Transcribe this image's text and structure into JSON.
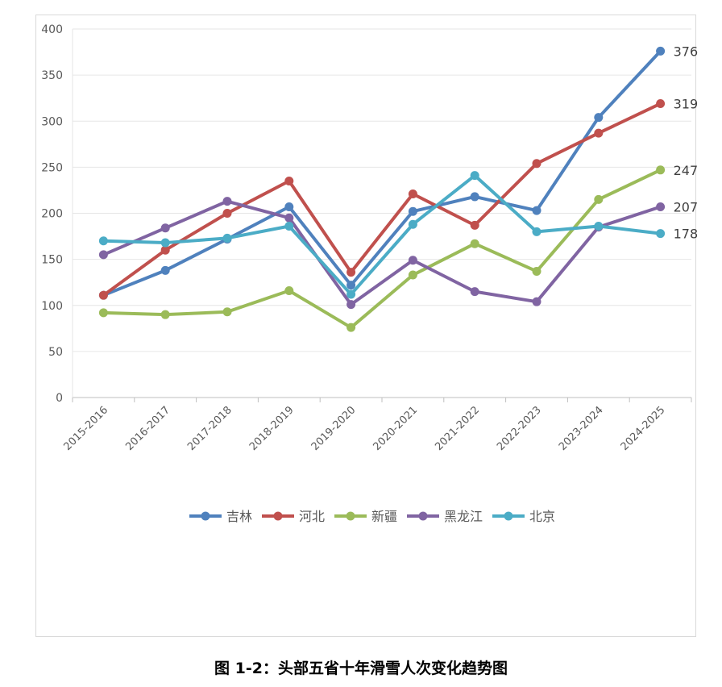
{
  "chart_data": {
    "type": "line",
    "title": "",
    "xlabel": "",
    "ylabel": "",
    "ylim": [
      0,
      400
    ],
    "yticks": [
      0,
      50,
      100,
      150,
      200,
      250,
      300,
      350,
      400
    ],
    "grid": true,
    "legend_position": "bottom",
    "categories": [
      "2015-2016",
      "2016-2017",
      "2017-2018",
      "2018-2019",
      "2019-2020",
      "2020-2021",
      "2021-2022",
      "2022-2023",
      "2023-2024",
      "2024-2025"
    ],
    "series": [
      {
        "name": "吉林",
        "color": "#4f81bd",
        "values": [
          111,
          138,
          172,
          207,
          122,
          202,
          218,
          203,
          304,
          376
        ]
      },
      {
        "name": "河北",
        "color": "#c0504d",
        "values": [
          111,
          160,
          200,
          235,
          136,
          221,
          187,
          254,
          287,
          319
        ]
      },
      {
        "name": "新疆",
        "color": "#9bbb59",
        "values": [
          92,
          90,
          93,
          116,
          76,
          133,
          167,
          137,
          215,
          247
        ]
      },
      {
        "name": "黑龙江",
        "color": "#8064a2",
        "values": [
          155,
          184,
          213,
          195,
          101,
          149,
          115,
          104,
          185,
          207
        ]
      },
      {
        "name": "北京",
        "color": "#4bacc6",
        "values": [
          170,
          168,
          173,
          186,
          112,
          188,
          241,
          180,
          186,
          178
        ]
      }
    ],
    "end_labels": [
      "376",
      "319",
      "247",
      "207",
      "178"
    ]
  },
  "caption": "图 1-2：头部五省十年滑雪人次变化趋势图"
}
